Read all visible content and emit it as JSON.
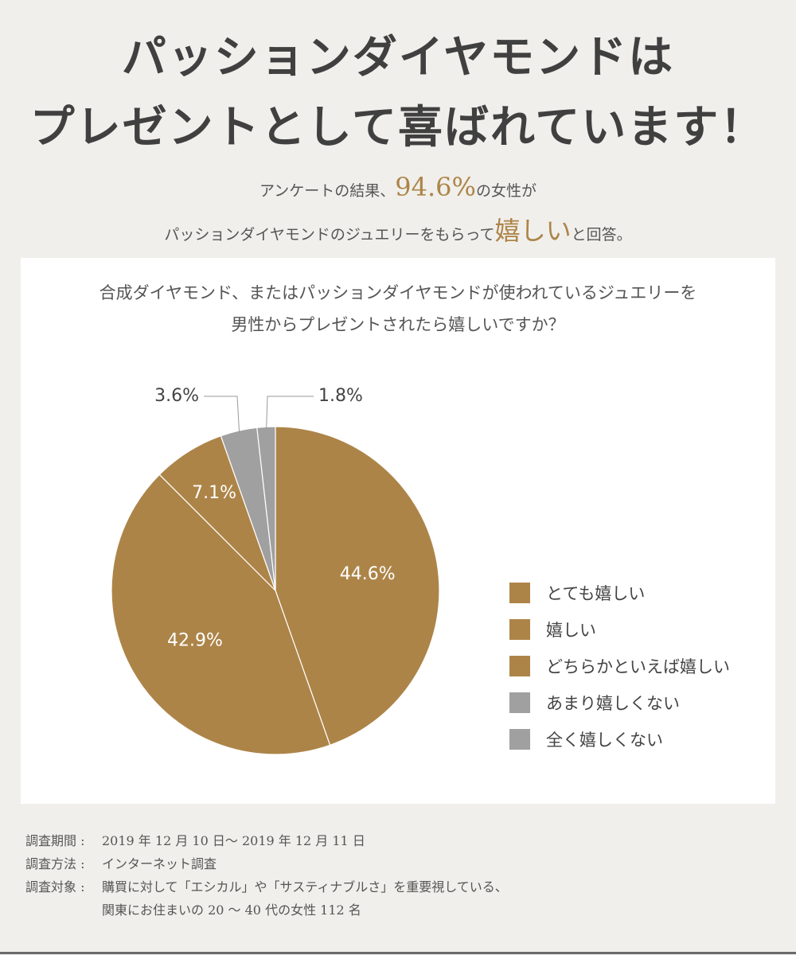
{
  "headline": {
    "line1": "パッションダイヤモンドは",
    "line2": "プレゼントとして喜ばれています！"
  },
  "lead": {
    "line1_pre": "アンケートの結果、",
    "line1_highlight": "94.6%",
    "line1_post": "の女性が",
    "line2_pre": "パッションダイヤモンドのジュエリーをもらって",
    "line2_highlight": "嬉しい",
    "line2_post": "と回答。"
  },
  "colors": {
    "accent": "#ad8448",
    "gray": "#a0a0a0",
    "background": "#f0efeb"
  },
  "chart_data": {
    "type": "pie",
    "title": "合成ダイヤモンド、またはパッションダイヤモンドが使われているジュエリーを男性からプレゼントされたら嬉しいですか？",
    "title_lines": [
      "合成ダイヤモンド、またはパッションダイヤモンドが使われているジュエリーを",
      "男性からプレゼントされたら嬉しいですか？"
    ],
    "legend_position": "right",
    "slices": [
      {
        "label": "とても嬉しい",
        "value": 44.6,
        "display": "44.6%",
        "color": "#ad8448"
      },
      {
        "label": "嬉しい",
        "value": 42.9,
        "display": "42.9%",
        "color": "#ad8448"
      },
      {
        "label": "どちらかといえば嬉しい",
        "value": 7.1,
        "display": "7.1%",
        "color": "#ad8448"
      },
      {
        "label": "あまり嬉しくない",
        "value": 3.6,
        "display": "3.6%",
        "color": "#a0a0a0"
      },
      {
        "label": "全く嬉しくない",
        "value": 1.8,
        "display": "1.8%",
        "color": "#a0a0a0"
      }
    ]
  },
  "notes": {
    "period_label": "調査期間 :",
    "period_value": "2019 年 12 月 10 日～ 2019 年 12 月 11 日",
    "method_label": "調査方法 :",
    "method_value": "インターネット調査",
    "target_label": "調査対象 :",
    "target_line1": "購買に対して「エシカル」や「サスティナブルさ」を重要視している、",
    "target_line2": "関東にお住まいの 20 ～ 40 代の女性 112 名"
  }
}
